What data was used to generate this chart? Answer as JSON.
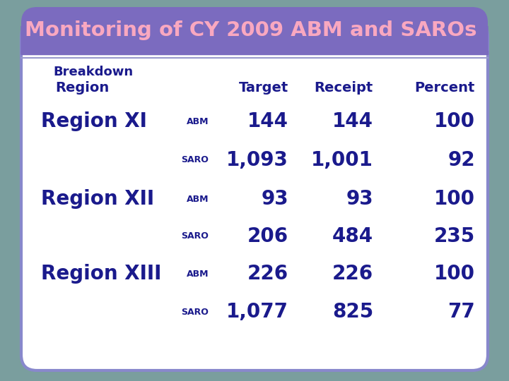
{
  "title": "Monitoring of CY 2009 ABM and SAROs",
  "title_bg": "#7B6BBF",
  "title_color": "#F9A8C0",
  "outer_bg": "#7A9E9E",
  "inner_bg": "#FFFFFF",
  "inner_border": "#8888CC",
  "header1": "Breakdown",
  "header2_region": "Region",
  "header2_target": "Target",
  "header2_receipt": "Receipt",
  "header2_percent": "Percent",
  "header_color": "#1A1A8C",
  "data_color": "#1A1A8C",
  "divider_color": "#9999CC",
  "rows": [
    {
      "region": "Region XI",
      "type": "ABM",
      "target": "144",
      "receipt": "144",
      "percent": "100"
    },
    {
      "region": "",
      "type": "SARO",
      "target": "1,093",
      "receipt": "1,001",
      "percent": "92"
    },
    {
      "region": "Region XII",
      "type": "ABM",
      "target": "93",
      "receipt": "93",
      "percent": "100"
    },
    {
      "region": "",
      "type": "SARO",
      "target": "206",
      "receipt": "484",
      "percent": "235"
    },
    {
      "region": "Region XIII",
      "type": "ABM",
      "target": "226",
      "receipt": "226",
      "percent": "100"
    },
    {
      "region": "",
      "type": "SARO",
      "target": "1,077",
      "receipt": "825",
      "percent": "77"
    }
  ]
}
